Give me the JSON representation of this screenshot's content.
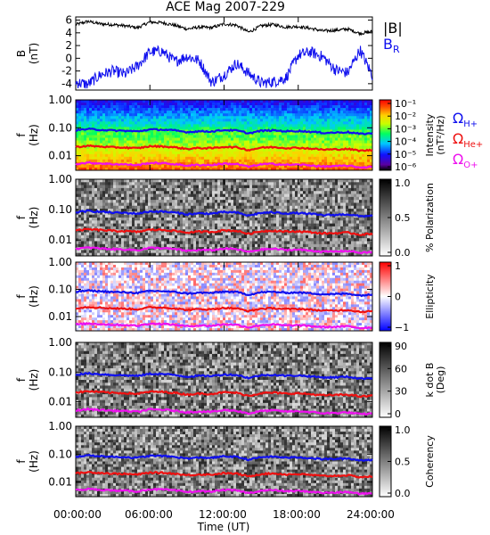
{
  "title": "ACE Mag 2007-229",
  "colors": {
    "black": "#000000",
    "blue": "#1010ee",
    "red": "#ee1010",
    "magenta": "#ee10ee"
  },
  "x_axis": {
    "label": "Time (UT)",
    "tick_labels": [
      "00:00:00",
      "06:00:00",
      "12:00:00",
      "18:00:00",
      "24:00:00"
    ],
    "tick_hours": [
      0,
      6,
      12,
      18,
      24
    ],
    "range_hours": [
      0,
      24
    ]
  },
  "chart_data": [
    {
      "id": "mag",
      "type": "line",
      "ylabel": [
        "B",
        "(nT)"
      ],
      "ylim": [
        -5,
        6.5
      ],
      "yticks": [
        -4,
        -2,
        0,
        2,
        4,
        6
      ],
      "series": [
        {
          "name": "|B|",
          "color": "#000000",
          "x": [
            0,
            1,
            2,
            3,
            4,
            5,
            6,
            7,
            8,
            9,
            10,
            11,
            12,
            13,
            14,
            15,
            16,
            17,
            18,
            19,
            20,
            21,
            22,
            23,
            24
          ],
          "y": [
            5.3,
            5.8,
            5.4,
            5.3,
            5.1,
            4.8,
            5.7,
            5.6,
            5.2,
            4.6,
            4.9,
            4.8,
            5.4,
            5.2,
            4.1,
            5.1,
            5.3,
            4.9,
            5.0,
            4.7,
            4.3,
            4.4,
            4.6,
            3.9,
            4.2
          ]
        },
        {
          "name": "BR",
          "color": "#1010ee",
          "x": [
            0,
            1,
            2,
            3,
            4,
            5,
            6,
            7,
            8,
            9,
            10,
            11,
            12,
            13,
            14,
            15,
            16,
            17,
            18,
            19,
            20,
            21,
            22,
            23,
            24
          ],
          "y": [
            -3.8,
            -4.1,
            -2.6,
            -2.0,
            -2.5,
            -1.2,
            1.0,
            1.1,
            -0.5,
            0.3,
            -0.4,
            -3.8,
            -2.6,
            -0.8,
            -2.4,
            -3.9,
            -3.7,
            -3.1,
            0.5,
            1.0,
            0.2,
            -1.8,
            -2.3,
            1.3,
            -2.7
          ]
        }
      ],
      "legend": [
        {
          "label": "|B|",
          "sub": "",
          "color": "#000000"
        },
        {
          "label": "B",
          "sub": "R",
          "color": "#1010ee"
        }
      ]
    },
    {
      "id": "intensity",
      "type": "heatmap",
      "ylabel": [
        "f",
        "(Hz)"
      ],
      "ylim": [
        0.003,
        1.0
      ],
      "yscale": "log",
      "yticks": [
        "1.00",
        "0.10",
        "0.01"
      ],
      "colorbar": {
        "label": [
          "Intensity",
          "(nT²/Hz)"
        ],
        "ticks": [
          "10⁻¹",
          "10⁻²",
          "10⁻³",
          "10⁻⁴",
          "10⁻⁵",
          "10⁻⁶"
        ],
        "map": "rainbow"
      },
      "overlays": [
        "ΩH+",
        "ΩHe+",
        "ΩO+"
      ],
      "legend": [
        {
          "label": "Ω",
          "sub": "H+",
          "color": "#1010ee"
        },
        {
          "label": "Ω",
          "sub": "He+",
          "color": "#ee1010"
        },
        {
          "label": "Ω",
          "sub": "O+",
          "color": "#ee10ee"
        }
      ]
    },
    {
      "id": "polarization",
      "type": "heatmap",
      "ylabel": [
        "f",
        "(Hz)"
      ],
      "ylim": [
        0.003,
        1.0
      ],
      "yscale": "log",
      "yticks": [
        "1.00",
        "0.10",
        "0.01"
      ],
      "colorbar": {
        "label": [
          "% Polarization"
        ],
        "ticks": [
          "1.0",
          "0.5",
          "0.0"
        ],
        "map": "gray"
      },
      "overlays": [
        "ΩH+",
        "ΩHe+",
        "ΩO+"
      ]
    },
    {
      "id": "ellipticity",
      "type": "heatmap",
      "ylabel": [
        "f",
        "(Hz)"
      ],
      "ylim": [
        0.003,
        1.0
      ],
      "yscale": "log",
      "yticks": [
        "1.00",
        "0.10",
        "0.01"
      ],
      "colorbar": {
        "label": [
          "Ellipticity"
        ],
        "ticks": [
          "1",
          "0",
          "−1"
        ],
        "map": "bwr"
      },
      "overlays": [
        "ΩH+",
        "ΩHe+",
        "ΩO+"
      ]
    },
    {
      "id": "kdotb",
      "type": "heatmap",
      "ylabel": [
        "f",
        "(Hz)"
      ],
      "ylim": [
        0.003,
        1.0
      ],
      "yscale": "log",
      "yticks": [
        "1.00",
        "0.10",
        "0.01"
      ],
      "colorbar": {
        "label": [
          "k dot B",
          "(Deg)"
        ],
        "ticks": [
          "90",
          "60",
          "30",
          "0"
        ],
        "map": "gray"
      },
      "overlays": [
        "ΩH+",
        "ΩHe+",
        "ΩO+"
      ]
    },
    {
      "id": "coherency",
      "type": "heatmap",
      "ylabel": [
        "f",
        "(Hz)"
      ],
      "ylim": [
        0.003,
        1.0
      ],
      "yscale": "log",
      "yticks": [
        "1.00",
        "0.10",
        "0.01"
      ],
      "colorbar": {
        "label": [
          "Coherency"
        ],
        "ticks": [
          "1.0",
          "0.5",
          "0.0"
        ],
        "map": "gray"
      },
      "overlays": [
        "ΩH+",
        "ΩHe+",
        "ΩO+"
      ]
    }
  ],
  "gyrofrequency_lines": {
    "hours": [
      0,
      1,
      2,
      3,
      4,
      5,
      6,
      7,
      8,
      9,
      10,
      11,
      12,
      13,
      14,
      15,
      16,
      17,
      18,
      19,
      20,
      21,
      22,
      23,
      24
    ],
    "H_plus_hz": [
      0.082,
      0.09,
      0.085,
      0.08,
      0.078,
      0.074,
      0.087,
      0.086,
      0.08,
      0.07,
      0.075,
      0.074,
      0.083,
      0.08,
      0.063,
      0.078,
      0.081,
      0.075,
      0.077,
      0.072,
      0.066,
      0.067,
      0.07,
      0.06,
      0.064
    ],
    "He_plus_hz": [
      0.0205,
      0.0225,
      0.0213,
      0.02,
      0.0195,
      0.0185,
      0.0218,
      0.0215,
      0.02,
      0.0175,
      0.0188,
      0.0185,
      0.0208,
      0.02,
      0.0158,
      0.0195,
      0.0203,
      0.0188,
      0.0193,
      0.018,
      0.0165,
      0.0168,
      0.0175,
      0.015,
      0.016
    ],
    "O_plus_hz": [
      0.0051,
      0.0056,
      0.0053,
      0.005,
      0.0049,
      0.0046,
      0.0055,
      0.0054,
      0.005,
      0.0044,
      0.0047,
      0.0046,
      0.0052,
      0.005,
      0.004,
      0.0049,
      0.0051,
      0.0047,
      0.0048,
      0.0045,
      0.0041,
      0.0042,
      0.0044,
      0.0038,
      0.004
    ]
  }
}
